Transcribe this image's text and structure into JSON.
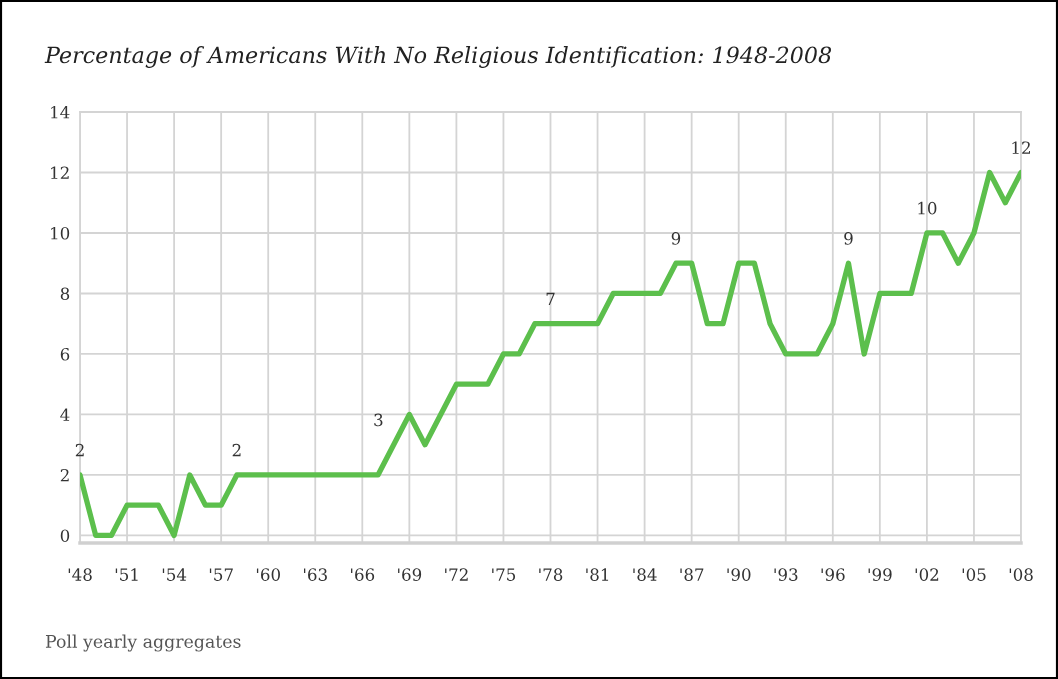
{
  "chart_data": {
    "type": "line",
    "title": "Percentage of Americans With No Religious Identification: 1948-2008",
    "x": [
      1948,
      1949,
      1950,
      1951,
      1952,
      1953,
      1954,
      1955,
      1956,
      1957,
      1958,
      1959,
      1960,
      1961,
      1962,
      1963,
      1964,
      1965,
      1966,
      1967,
      1968,
      1969,
      1970,
      1971,
      1972,
      1973,
      1974,
      1975,
      1976,
      1977,
      1978,
      1979,
      1980,
      1981,
      1982,
      1983,
      1984,
      1985,
      1986,
      1987,
      1988,
      1989,
      1990,
      1991,
      1992,
      1993,
      1994,
      1995,
      1996,
      1997,
      1998,
      1999,
      2000,
      2001,
      2002,
      2003,
      2004,
      2005,
      2006,
      2007,
      2008
    ],
    "series": [
      {
        "color": "#5cbf4c",
        "values": [
          2,
          0,
          0,
          1,
          1,
          1,
          0,
          2,
          1,
          1,
          2,
          2,
          2,
          2,
          2,
          2,
          2,
          2,
          2,
          2,
          3,
          4,
          3,
          4,
          5,
          5,
          5,
          6,
          6,
          7,
          7,
          7,
          7,
          7,
          8,
          8,
          8,
          8,
          9,
          9,
          7,
          7,
          9,
          9,
          7,
          6,
          6,
          6,
          7,
          9,
          6,
          8,
          8,
          8,
          10,
          10,
          9,
          10,
          12,
          11,
          12
        ],
        "value_labels": [
          "2",
          null,
          null,
          null,
          null,
          null,
          null,
          null,
          null,
          null,
          "2",
          null,
          null,
          null,
          null,
          null,
          null,
          null,
          null,
          null,
          "3",
          null,
          null,
          null,
          null,
          null,
          null,
          null,
          null,
          null,
          "7",
          null,
          null,
          null,
          null,
          null,
          null,
          null,
          "9",
          null,
          null,
          null,
          null,
          null,
          null,
          null,
          null,
          null,
          null,
          "9",
          null,
          null,
          null,
          null,
          "10",
          null,
          null,
          null,
          null,
          null,
          "12"
        ]
      }
    ],
    "xlim": [
      1948,
      2008
    ],
    "ylim": [
      -0.25,
      14
    ],
    "xticks": [
      {
        "value": 1948,
        "label": "'48"
      },
      {
        "value": 1951,
        "label": "'51"
      },
      {
        "value": 1954,
        "label": "'54"
      },
      {
        "value": 1957,
        "label": "'57"
      },
      {
        "value": 1960,
        "label": "'60"
      },
      {
        "value": 1963,
        "label": "'63"
      },
      {
        "value": 1966,
        "label": "'66"
      },
      {
        "value": 1969,
        "label": "'69"
      },
      {
        "value": 1972,
        "label": "'72"
      },
      {
        "value": 1975,
        "label": "'75"
      },
      {
        "value": 1978,
        "label": "'78"
      },
      {
        "value": 1981,
        "label": "'81"
      },
      {
        "value": 1984,
        "label": "'84"
      },
      {
        "value": 1987,
        "label": "'87"
      },
      {
        "value": 1990,
        "label": "'90"
      },
      {
        "value": 1993,
        "label": "'93"
      },
      {
        "value": 1996,
        "label": "'96"
      },
      {
        "value": 1999,
        "label": "'99"
      },
      {
        "value": 2002,
        "label": "'02"
      },
      {
        "value": 2005,
        "label": "'05"
      },
      {
        "value": 2008,
        "label": "'08"
      }
    ],
    "yticks": [
      0,
      2,
      4,
      6,
      8,
      10,
      12,
      14
    ],
    "grid": true,
    "line_style": "solid",
    "annotations": [
      "Poll yearly aggregates"
    ]
  }
}
